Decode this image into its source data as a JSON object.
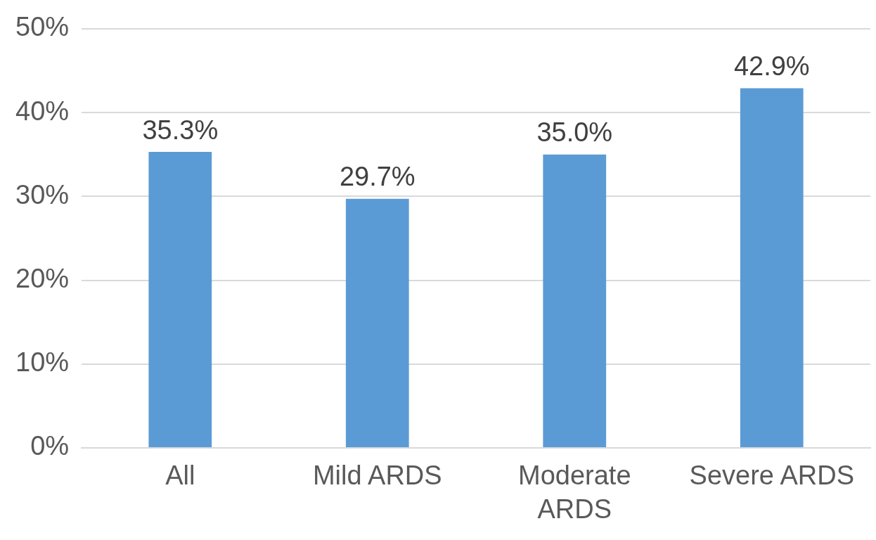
{
  "chart_data": {
    "type": "bar",
    "categories": [
      "All",
      "Mild ARDS",
      "Moderate ARDS",
      "Severe ARDS"
    ],
    "values": [
      35.3,
      29.7,
      35.0,
      42.9
    ],
    "value_labels": [
      "35.3%",
      "29.7%",
      "35.0%",
      "42.9%"
    ],
    "color": "#5b9bd5",
    "ylim": [
      0,
      50
    ],
    "yticks": [
      {
        "value": 0,
        "label": "0%"
      },
      {
        "value": 10,
        "label": "10%"
      },
      {
        "value": 20,
        "label": "20%"
      },
      {
        "value": 30,
        "label": "30%"
      },
      {
        "value": 40,
        "label": "40%"
      },
      {
        "value": 50,
        "label": "50%"
      }
    ],
    "grid": "y",
    "legend": false
  }
}
